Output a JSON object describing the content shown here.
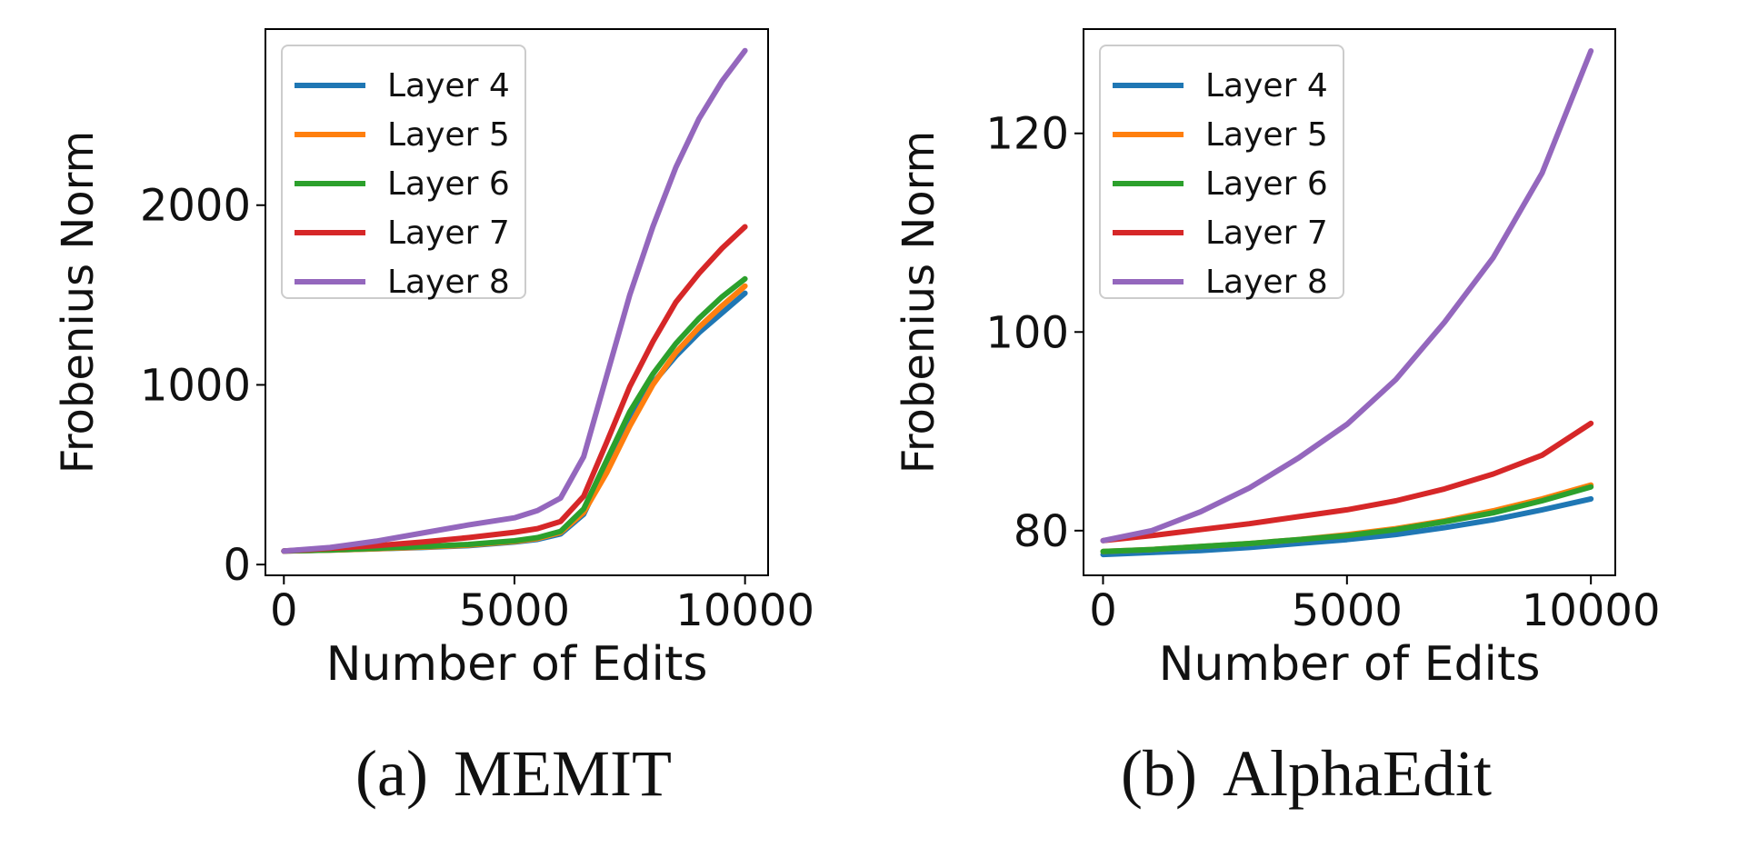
{
  "chart_data": [
    {
      "type": "line",
      "caption_label": "(a)",
      "caption_text": "MEMIT",
      "xlabel": "Number of Edits",
      "ylabel": "Frobenius Norm",
      "xlim": [
        -400,
        10500
      ],
      "ylim": [
        -60,
        2980
      ],
      "xticks": [
        0,
        5000,
        10000
      ],
      "yticks": [
        0,
        1000,
        2000
      ],
      "legend_position": "upper-left",
      "grid": false,
      "x": [
        0,
        1000,
        2000,
        3000,
        4000,
        5000,
        5500,
        6000,
        6500,
        7000,
        7500,
        8000,
        8500,
        9000,
        9500,
        10000
      ],
      "series": [
        {
          "name": "Layer 4",
          "color": "#1f77b4",
          "values": [
            75,
            80,
            87,
            95,
            105,
            125,
            140,
            170,
            280,
            550,
            800,
            1010,
            1160,
            1290,
            1400,
            1510
          ]
        },
        {
          "name": "Layer 5",
          "color": "#ff7f0e",
          "values": [
            75,
            80,
            88,
            97,
            108,
            128,
            145,
            178,
            290,
            510,
            770,
            1000,
            1180,
            1320,
            1440,
            1550
          ]
        },
        {
          "name": "Layer 6",
          "color": "#2ca02c",
          "values": [
            75,
            81,
            90,
            100,
            112,
            132,
            150,
            185,
            310,
            580,
            850,
            1060,
            1230,
            1370,
            1490,
            1590
          ]
        },
        {
          "name": "Layer 7",
          "color": "#d62728",
          "values": [
            75,
            90,
            105,
            125,
            150,
            180,
            200,
            240,
            380,
            680,
            990,
            1240,
            1460,
            1620,
            1760,
            1880
          ]
        },
        {
          "name": "Layer 8",
          "color": "#9467bd",
          "values": [
            75,
            95,
            130,
            175,
            220,
            260,
            300,
            370,
            600,
            1050,
            1500,
            1880,
            2210,
            2480,
            2690,
            2860
          ]
        }
      ]
    },
    {
      "type": "line",
      "caption_label": "(b)",
      "caption_text": "AlphaEdit",
      "xlabel": "Number of Edits",
      "ylabel": "Frobenius Norm",
      "xlim": [
        -400,
        10500
      ],
      "ylim": [
        75.5,
        130.5
      ],
      "xticks": [
        0,
        5000,
        10000
      ],
      "yticks": [
        80,
        100,
        120
      ],
      "legend_position": "upper-left",
      "grid": false,
      "x": [
        0,
        1000,
        2000,
        3000,
        4000,
        5000,
        6000,
        7000,
        8000,
        9000,
        10000
      ],
      "series": [
        {
          "name": "Layer 4",
          "color": "#1f77b4",
          "values": [
            77.6,
            77.8,
            78.0,
            78.3,
            78.7,
            79.1,
            79.6,
            80.3,
            81.1,
            82.1,
            83.2
          ]
        },
        {
          "name": "Layer 5",
          "color": "#ff7f0e",
          "values": [
            77.9,
            78.1,
            78.4,
            78.7,
            79.1,
            79.6,
            80.2,
            81.0,
            82.0,
            83.2,
            84.6
          ]
        },
        {
          "name": "Layer 6",
          "color": "#2ca02c",
          "values": [
            77.9,
            78.1,
            78.4,
            78.7,
            79.1,
            79.5,
            80.1,
            80.9,
            81.8,
            83.0,
            84.4
          ]
        },
        {
          "name": "Layer 7",
          "color": "#d62728",
          "values": [
            79.0,
            79.5,
            80.1,
            80.7,
            81.4,
            82.1,
            83.0,
            84.2,
            85.7,
            87.6,
            90.8
          ]
        },
        {
          "name": "Layer 8",
          "color": "#9467bd",
          "values": [
            79.0,
            80.0,
            81.9,
            84.3,
            87.3,
            90.7,
            95.2,
            101.0,
            107.5,
            116.0,
            128.3
          ]
        }
      ]
    }
  ]
}
